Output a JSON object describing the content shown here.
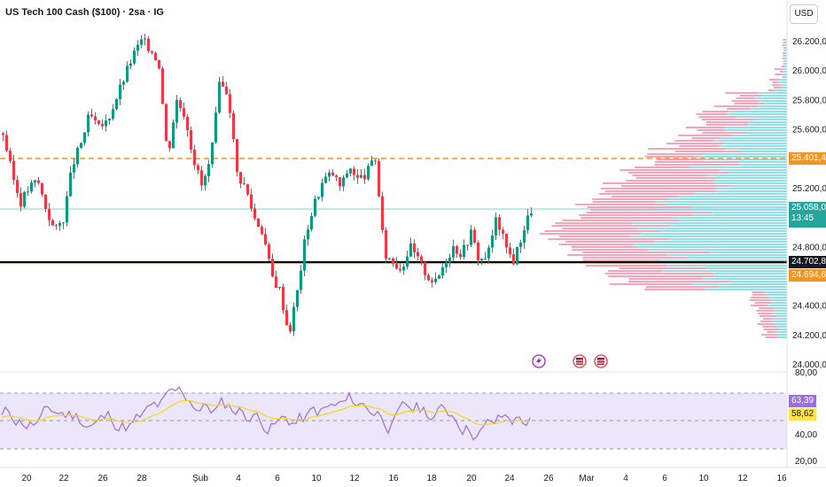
{
  "header": {
    "title": "US Tech 100 Cash ($100) · 2sa · IG",
    "currency": "USD"
  },
  "colors": {
    "up": "#089981",
    "down": "#f23645",
    "orange": "#f7941d",
    "rsi": "#9c6fd6",
    "rsi_ma": "#ffe34d",
    "vp_up": "#8fe0e8",
    "vp_down": "#f7a3b9"
  },
  "price_axis": {
    "ticks": [
      "26.200,0",
      "26.000,0",
      "25.800,0",
      "25.600,0",
      "25.200,0",
      "24.800,0",
      "24.400,0",
      "24.200,0",
      "24.000,0"
    ],
    "ticks_values": [
      26200,
      26000,
      25800,
      25600,
      25200,
      24800,
      24400,
      24200,
      24000
    ]
  },
  "labels": {
    "orange_level": "25.401,4",
    "last_price": "25.058,0",
    "countdown": "13:45",
    "black_level": "24.702,8",
    "orange_low": "24.694,6"
  },
  "rsi_axis": {
    "ticks": [
      "80,00",
      "40,00",
      "20,00"
    ],
    "rsi_value": "63,39",
    "rsi_ma_value": "58,62"
  },
  "time_axis": [
    "20",
    "22",
    "26",
    "28",
    "Şub",
    "4",
    "6",
    "10",
    "12",
    "16",
    "18",
    "20",
    "24",
    "26",
    "Mar",
    "4",
    "6",
    "10",
    "12",
    "16"
  ],
  "events": [
    "lightning-icon",
    "flag-icon",
    "flag-icon"
  ],
  "chart_data": {
    "type": "candlestick",
    "title": "US Tech 100 Cash ($100) · 2sa · IG",
    "ylim": [
      24000,
      26280
    ],
    "levels": [
      25401.4,
      24702.8,
      25058.0
    ],
    "close_path": [
      25570,
      25300,
      25100,
      25200,
      25250,
      25050,
      24900,
      25000,
      25350,
      25500,
      25700,
      25600,
      25650,
      25800,
      25950,
      26100,
      26200,
      26150,
      26050,
      25400,
      25800,
      25700,
      25400,
      25200,
      25400,
      25900,
      25850,
      25300,
      25200,
      25000,
      24900,
      24600,
      24500,
      24200,
      24500,
      24900,
      25100,
      25250,
      25300,
      25200,
      25350,
      25250,
      25300,
      25400,
      24750,
      24700,
      24650,
      24800,
      24700,
      24600,
      24550,
      24700,
      24800,
      24750,
      24900,
      24700,
      24750,
      25000,
      24800,
      24700,
      24900,
      25050
    ]
  }
}
